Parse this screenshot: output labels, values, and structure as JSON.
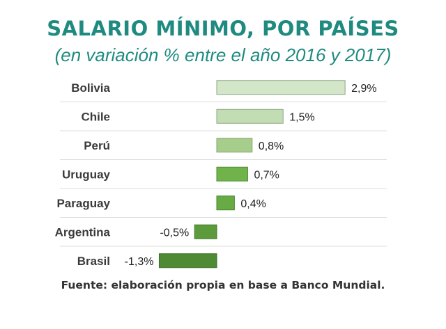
{
  "chart_data": {
    "type": "bar",
    "orientation": "horizontal",
    "title": "SALARIO MÍNIMO, POR PAÍSES",
    "subtitle": "(en variación % entre el año 2016 y 2017)",
    "categories": [
      "Bolivia",
      "Chile",
      "Perú",
      "Uruguay",
      "Paraguay",
      "Argentina",
      "Brasil"
    ],
    "values": [
      2.9,
      1.5,
      0.8,
      0.7,
      0.4,
      -0.5,
      -1.3
    ],
    "value_labels": [
      "2,9%",
      "1,5%",
      "0,8%",
      "0,7%",
      "0,4%",
      "-0,5%",
      "-1,3%"
    ],
    "bar_colors": [
      "#d3e6c8",
      "#c2ddb3",
      "#a6cd8b",
      "#6fb34a",
      "#68aa44",
      "#5c9a3c",
      "#4f8a34"
    ],
    "bar_borders": [
      "#8fa585",
      "#8fa585",
      "#86a572",
      "#4e8e33",
      "#4a8a31",
      "#3f7a2c",
      "#3c6f27"
    ],
    "xlim": [
      -1.3,
      2.9
    ],
    "grid": "horizontal separators between rows",
    "legend": "none",
    "source_note": "Fuente: elaboración propia en base a Banco Mundial."
  }
}
